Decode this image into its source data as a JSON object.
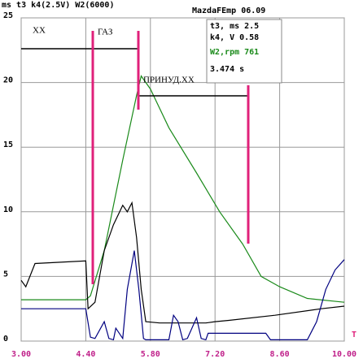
{
  "chart_data": {
    "type": "line",
    "header": "ms t3 k4(2.5V) W2(6000)",
    "title": "MazdaFEmp 06.09",
    "info": [
      "t3, ms 2.5",
      "k4,  V 0.58",
      "W2,rpm  761",
      "3.474 s"
    ],
    "annotations": [
      "ХХ",
      "ГАЗ",
      "ПРИНУД.ХХ"
    ],
    "x_axis_label": "T",
    "xlim": [
      3,
      10
    ],
    "ylim": [
      0,
      25
    ],
    "xticks": [
      {
        "value": 3,
        "label": "3.00"
      },
      {
        "value": 4.4,
        "label": "4.40"
      },
      {
        "value": 5.8,
        "label": "5.80"
      },
      {
        "value": 7.2,
        "label": "7.20"
      },
      {
        "value": 8.6,
        "label": "8.60"
      },
      {
        "value": 10,
        "label": "10.00"
      }
    ],
    "yticks": [
      0,
      5,
      10,
      15,
      20,
      25
    ],
    "grid": true,
    "series": [
      {
        "color": "#1a8a1a",
        "x": [
          3,
          4.4,
          4.5,
          4.8,
          5.2,
          5.5,
          5.6,
          5.8,
          6.2,
          6.8,
          7.3,
          7.8,
          8.2,
          8.6,
          9.2,
          10
        ],
        "values": [
          3.2,
          3.2,
          3.5,
          7,
          14,
          19,
          20.5,
          19.5,
          16.5,
          13,
          10,
          7.5,
          5,
          4.2,
          3.3,
          3.0
        ]
      },
      {
        "color": "#000000",
        "x": [
          3,
          3.1,
          3.3,
          4.4,
          4.45,
          4.6,
          4.8,
          5.0,
          5.2,
          5.3,
          5.4,
          5.5,
          5.6,
          5.7,
          6.0,
          7.0,
          7.2,
          7.5,
          8.5,
          9.5,
          10
        ],
        "values": [
          4.7,
          4.2,
          6.0,
          6.2,
          2.5,
          3,
          7,
          9,
          10.5,
          10,
          10.7,
          8,
          4,
          1.5,
          1.4,
          1.4,
          1.5,
          1.6,
          2.0,
          2.5,
          2.7
        ]
      },
      {
        "color": "#000080",
        "x": [
          3,
          4.4,
          4.5,
          4.6,
          4.8,
          4.9,
          5.0,
          5.05,
          5.2,
          5.3,
          5.45,
          5.55,
          5.65,
          5.7,
          6.2,
          6.3,
          6.4,
          6.5,
          6.6,
          6.8,
          6.9,
          7.0,
          7.05,
          8.3,
          8.4,
          9.2,
          9.4,
          9.6,
          9.8,
          10
        ],
        "values": [
          2.5,
          2.5,
          0.3,
          0.2,
          1.5,
          0.2,
          0.1,
          1.0,
          0.2,
          4,
          7,
          4,
          0.2,
          0.1,
          0.1,
          2,
          1.5,
          0.1,
          0.2,
          1.8,
          0.2,
          0.1,
          0.6,
          0.6,
          0.1,
          0.1,
          1.5,
          4,
          5.5,
          6.3
        ]
      }
    ]
  }
}
